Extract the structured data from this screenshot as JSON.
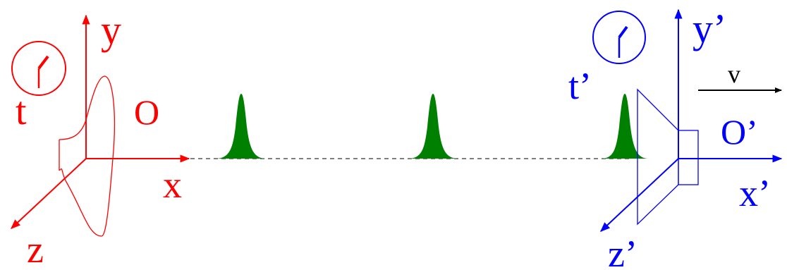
{
  "frame_o": {
    "color": "#ff0000",
    "labels": {
      "y": "y",
      "x": "x",
      "z": "z",
      "origin": "O",
      "time": "t"
    },
    "clock_icon": "clock-icon"
  },
  "frame_o_prime": {
    "color": "#0000ff",
    "labels": {
      "y": "y’",
      "x": "x’",
      "z": "z’",
      "origin": "O’",
      "time": "t’"
    },
    "clock_icon": "clock-icon"
  },
  "velocity": {
    "label": "v",
    "color": "#000000"
  },
  "pulses": {
    "color": "#008000",
    "count": 3
  }
}
